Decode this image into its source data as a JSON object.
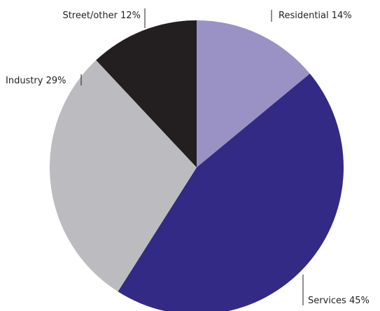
{
  "chart_data": {
    "type": "pie",
    "categories": [
      "Residential",
      "Services",
      "Industry",
      "Street/other"
    ],
    "values": [
      14,
      45,
      29,
      12
    ],
    "value_labels": [
      "14%",
      "45%",
      "29%",
      "12%"
    ],
    "colors": [
      "#9a92c4",
      "#332a85",
      "#bcbcc0",
      "#231f20"
    ]
  }
}
